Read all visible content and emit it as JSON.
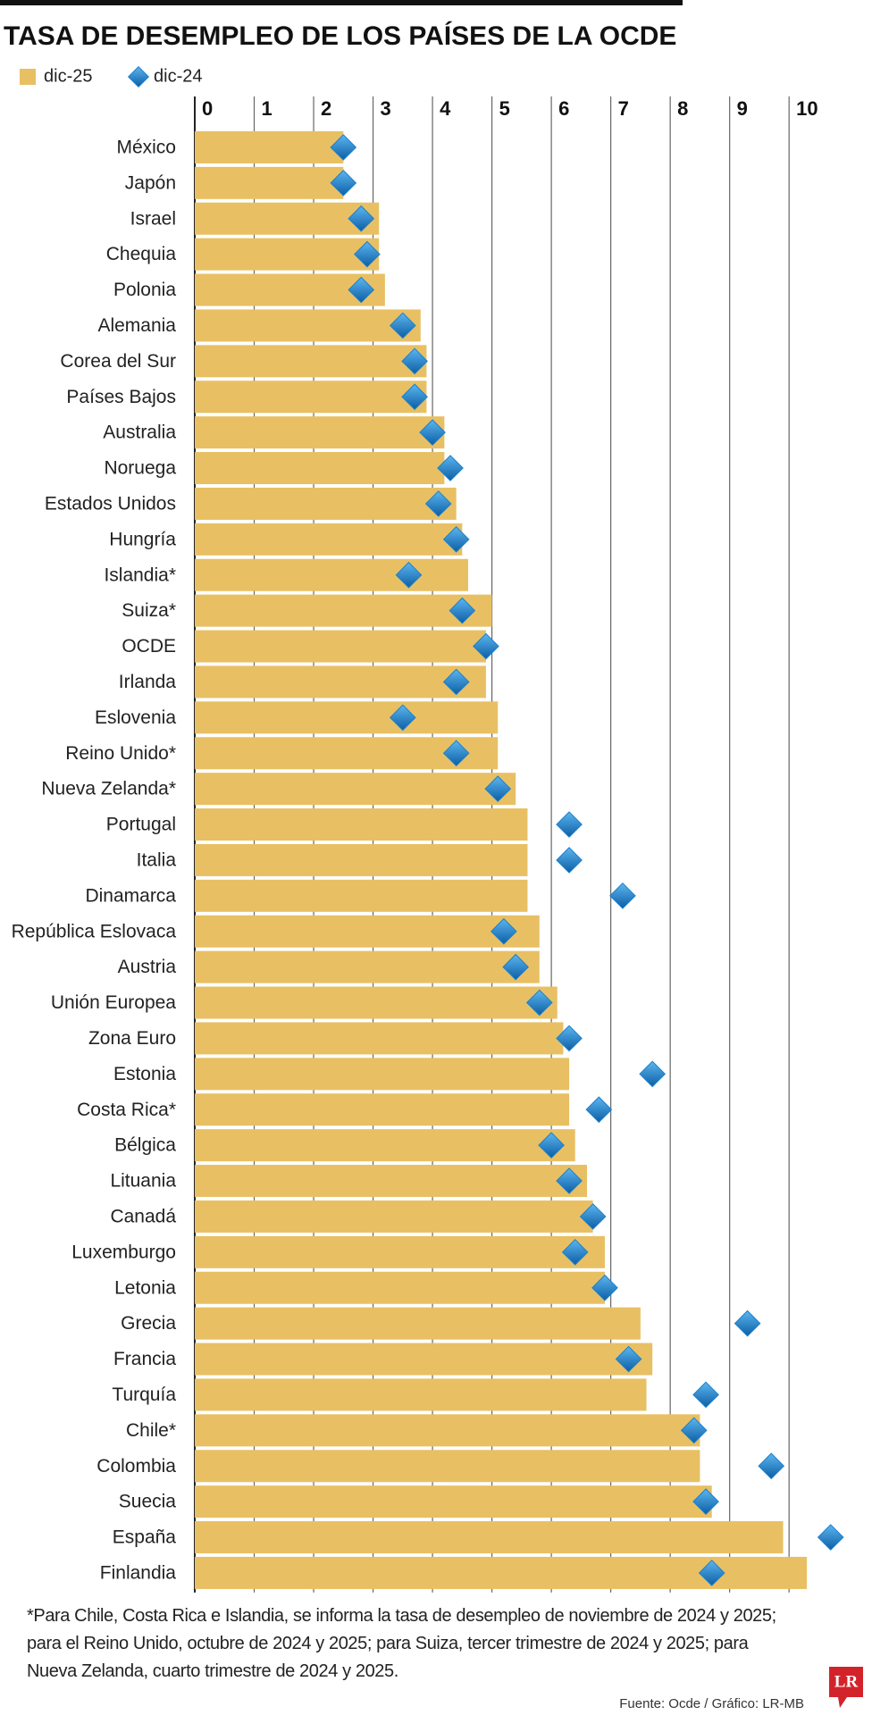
{
  "chart_data": {
    "type": "hbar",
    "title": "TASA DE DESEMPLEO DE LOS PAÍSES DE LA OCDE",
    "categories": [
      "México",
      "Japón",
      "Israel",
      "Chequia",
      "Polonia",
      "Alemania",
      "Corea del Sur",
      "Países Bajos",
      "Australia",
      "Noruega",
      "Estados Unidos",
      "Hungría",
      "Islandia*",
      "Suiza*",
      "OCDE",
      "Irlanda",
      "Eslovenia",
      "Reino Unido*",
      "Nueva Zelanda*",
      "Portugal",
      "Italia",
      "Dinamarca",
      "República Eslovaca",
      "Austria",
      "Unión Europea",
      "Zona Euro",
      "Estonia",
      "Costa Rica*",
      "Bélgica",
      "Lituania",
      "Canadá",
      "Luxemburgo",
      "Letonia",
      "Grecia",
      "Francia",
      "Turquía",
      "Chile*",
      "Colombia",
      "Suecia",
      "España",
      "Finlandia"
    ],
    "series": [
      {
        "name": "dic-25",
        "color": "#e8c063",
        "marker": "bar",
        "values": [
          2.5,
          2.5,
          3.1,
          3.1,
          3.2,
          3.8,
          3.9,
          3.9,
          4.2,
          4.2,
          4.4,
          4.5,
          4.6,
          5.0,
          4.9,
          4.9,
          5.1,
          5.1,
          5.4,
          5.6,
          5.6,
          5.6,
          5.8,
          5.8,
          6.1,
          6.2,
          6.3,
          6.3,
          6.4,
          6.6,
          6.7,
          6.9,
          6.9,
          7.5,
          7.7,
          7.6,
          8.5,
          8.5,
          8.7,
          9.9,
          10.3
        ]
      },
      {
        "name": "dic-24",
        "color": "#1b80cf",
        "marker": "diamond",
        "values": [
          2.5,
          2.5,
          2.8,
          2.9,
          2.8,
          3.5,
          3.7,
          3.7,
          4.0,
          4.3,
          4.1,
          4.4,
          3.6,
          4.5,
          4.9,
          4.4,
          3.5,
          4.4,
          5.1,
          6.3,
          6.3,
          7.2,
          5.2,
          5.4,
          5.8,
          6.3,
          7.7,
          6.8,
          6.0,
          6.3,
          6.7,
          6.4,
          6.9,
          9.3,
          7.3,
          8.6,
          8.4,
          9.7,
          8.6,
          10.7,
          8.7
        ]
      }
    ],
    "xlim": [
      0,
      11.2
    ],
    "xticks": [
      0,
      1,
      2,
      3,
      4,
      5,
      6,
      7,
      8,
      9,
      10
    ],
    "grid": true,
    "footnote": "*Para Chile, Costa Rica e Islandia, se informa la tasa de desempleo de noviembre de 2024 y 2025; para el Reino Unido, octubre de 2024 y 2025; para Suiza, tercer trimestre de 2024 y 2025; para Nueva Zelanda, cuarto trimestre de 2024 y 2025.",
    "source": "Fuente: Ocde / Gráfico: LR-MB",
    "logo": "LR"
  }
}
